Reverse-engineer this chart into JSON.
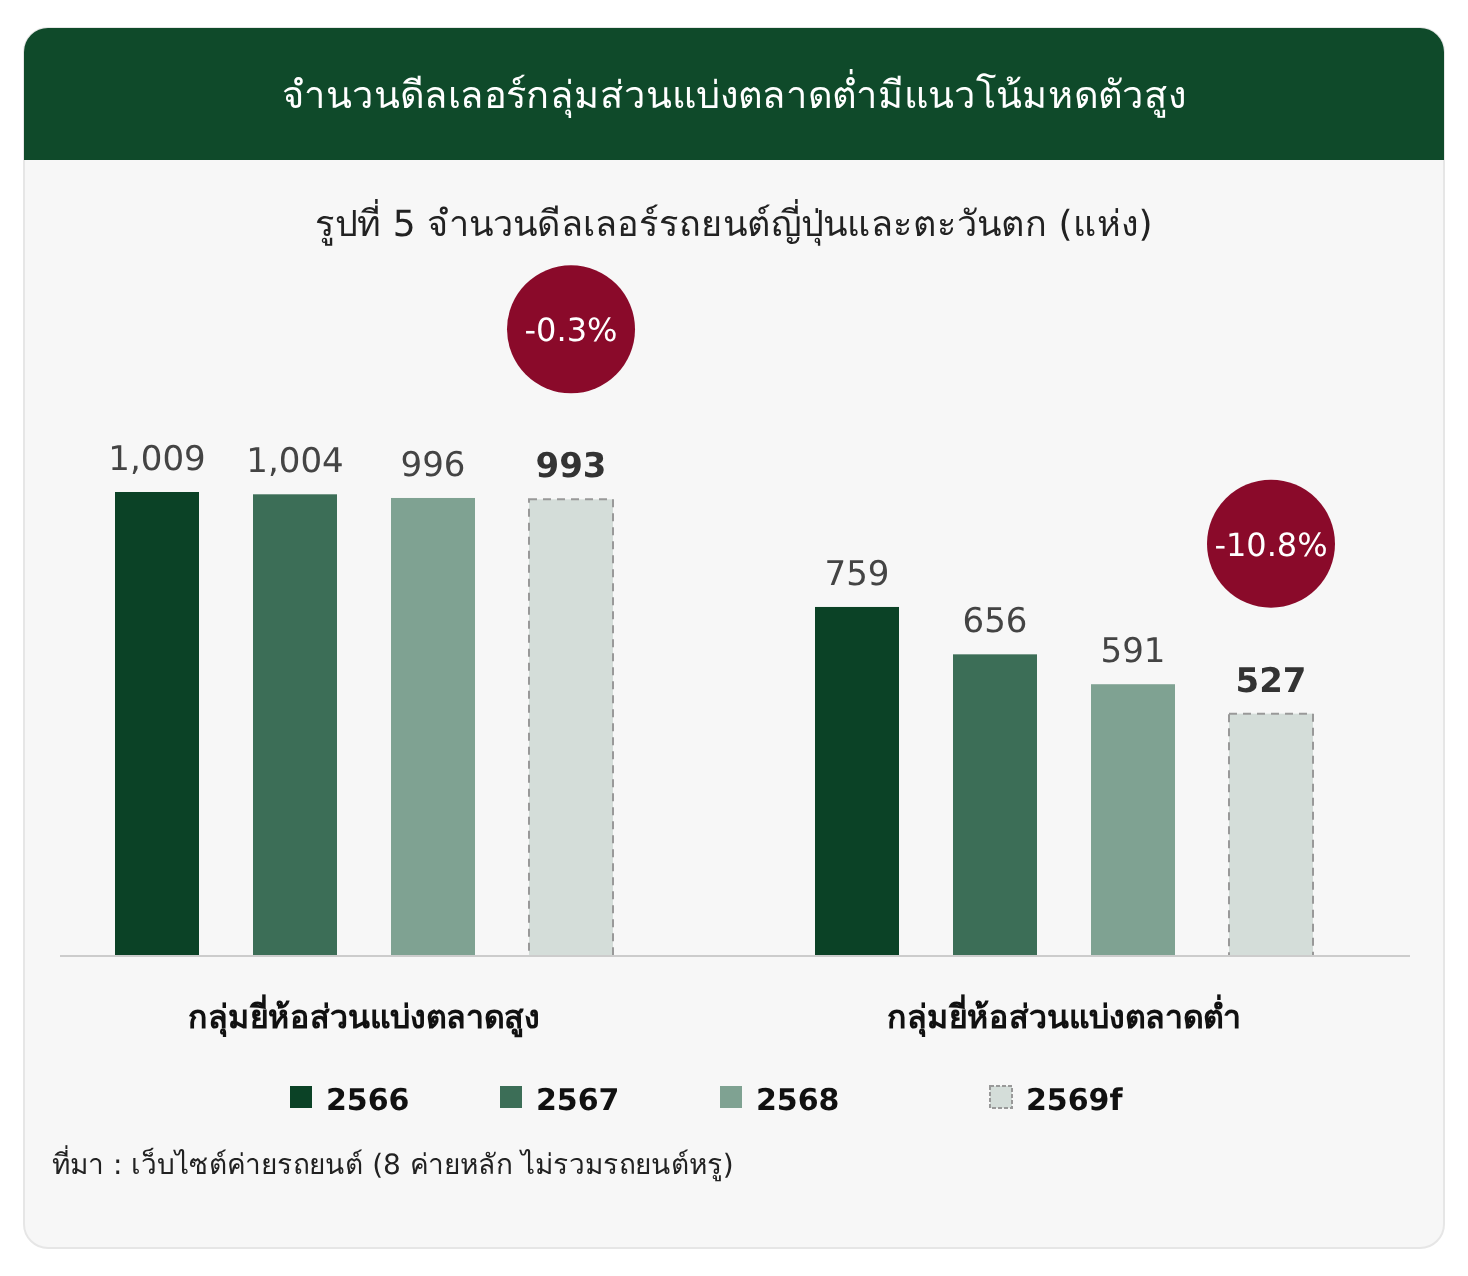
{
  "chart_data": {
    "type": "bar",
    "title": "จำนวนดีลเลอร์กลุ่มส่วนแบ่งตลาดต่ำมีแนวโน้มหดตัวสูง",
    "subtitle": "รูปที่ 5 จำนวนดีลเลอร์รถยนต์ญี่ปุ่นและตะวันตก (แห่ง)",
    "categories": [
      "กลุ่มยี่ห้อส่วนแบ่งตลาดสูง",
      "กลุ่มยี่ห้อส่วนแบ่งตลาดต่ำ"
    ],
    "series": [
      {
        "name": "2566",
        "color": "#0b4226",
        "values": [
          1009,
          759
        ],
        "value_labels": [
          "1,009",
          "759"
        ]
      },
      {
        "name": "2567",
        "color": "#3c6e57",
        "values": [
          1004,
          656
        ],
        "value_labels": [
          "1,004",
          "656"
        ]
      },
      {
        "name": "2568",
        "color": "#7fa292",
        "values": [
          996,
          591
        ],
        "value_labels": [
          "996",
          "591"
        ]
      },
      {
        "name": "2569f",
        "color": "#d4ddd9",
        "values": [
          993,
          527
        ],
        "value_labels": [
          "993",
          "527"
        ],
        "line_style": "dashed"
      }
    ],
    "legend": "bottom",
    "annotations": [
      "-0.3%",
      "-10.8%",
      "ที่มา : เว็บไซต์ค่ายรถยนต์ (8 ค่ายหลัก ไม่รวมรถยนต์หรู)"
    ]
  }
}
